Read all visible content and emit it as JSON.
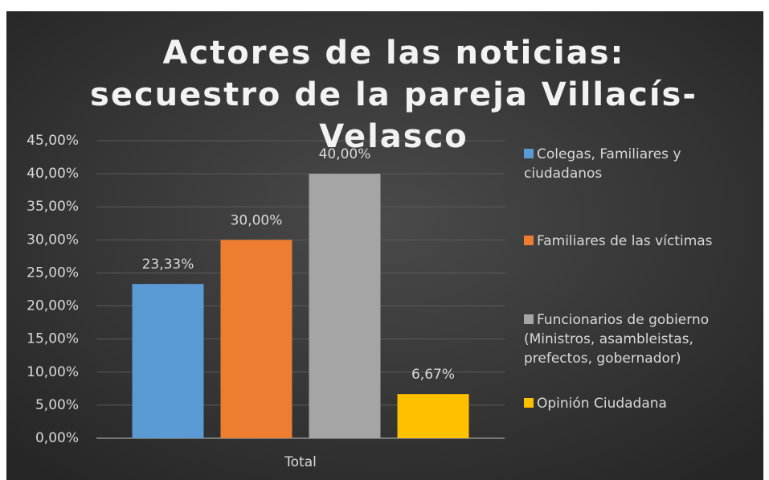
{
  "chart_data": {
    "type": "bar",
    "title": "Actores de las noticias: secuestro de la pareja Villacís-Velasco",
    "categories": [
      "Total"
    ],
    "series": [
      {
        "name": "Colegas, Familiares y ciudadanos",
        "color": "#5b9bd5",
        "values": [
          23.33
        ],
        "value_labels": [
          "23,33%"
        ]
      },
      {
        "name": "Familiares de las víctimas",
        "color": "#ed7d31",
        "values": [
          30
        ],
        "value_labels": [
          "30,00%"
        ]
      },
      {
        "name": "Funcionarios de gobierno (Ministros, asambleistas, prefectos, gobernador)",
        "color": "#a5a5a5",
        "values": [
          40
        ],
        "value_labels": [
          "40,00%"
        ]
      },
      {
        "name": "Opinión Ciudadana",
        "color": "#ffc000",
        "values": [
          6.67
        ],
        "value_labels": [
          "6,67%"
        ]
      }
    ],
    "ylim": [
      0,
      45
    ],
    "yticks": [
      {
        "value": 0,
        "label": "0,00%"
      },
      {
        "value": 5,
        "label": "5,00%"
      },
      {
        "value": 10,
        "label": "10,00%"
      },
      {
        "value": 15,
        "label": "15,00%"
      },
      {
        "value": 20,
        "label": "20,00%"
      },
      {
        "value": 25,
        "label": "25,00%"
      },
      {
        "value": 30,
        "label": "30,00%"
      },
      {
        "value": 35,
        "label": "35,00%"
      },
      {
        "value": 40,
        "label": "40,00%"
      },
      {
        "value": 45,
        "label": "45,00%"
      }
    ],
    "grid": true,
    "legend": "right"
  }
}
